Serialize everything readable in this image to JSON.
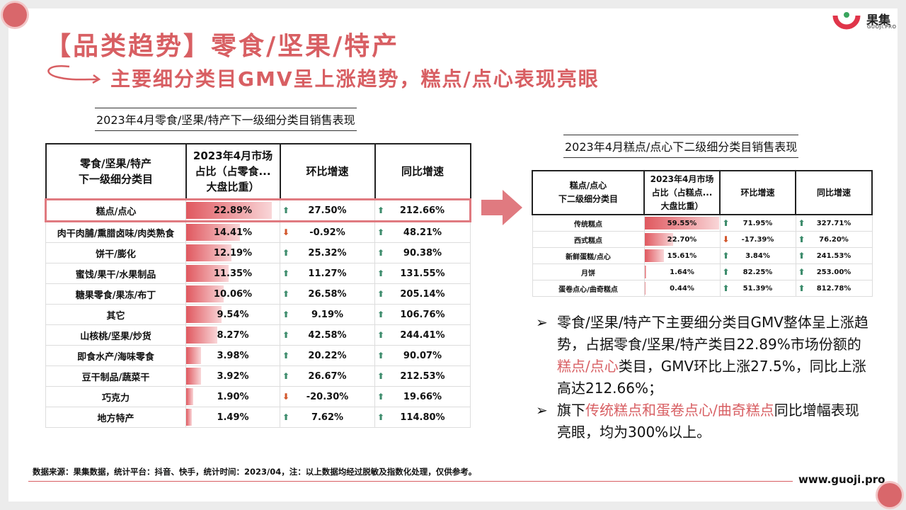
{
  "header": {
    "title": "【品类趋势】零食/坚果/特产",
    "subtitle": "主要细分类目GMV呈上涨趋势，糕点/点心表现亮眼"
  },
  "logo": {
    "name": "果集",
    "sub": "GUOJI.PRO"
  },
  "main_table": {
    "caption": "2023年4月零食/坚果/特产下一级细分类目销售表现",
    "headers": [
      "零食/坚果/特产\n下一级细分类目",
      "2023年4月市场\n占比（占零食...\n大盘比重）",
      "环比增速",
      "同比增速"
    ],
    "rows": [
      {
        "category": "糕点/点心",
        "share": "22.89%",
        "share_value": 22.89,
        "mom": "27.50%",
        "mom_dir": "up",
        "yoy": "212.66%",
        "yoy_dir": "up"
      },
      {
        "category": "肉干肉脯/熏腊卤味/肉类熟食",
        "share": "14.41%",
        "share_value": 14.41,
        "mom": "-0.92%",
        "mom_dir": "down",
        "yoy": "48.21%",
        "yoy_dir": "up"
      },
      {
        "category": "饼干/膨化",
        "share": "12.19%",
        "share_value": 12.19,
        "mom": "25.32%",
        "mom_dir": "up",
        "yoy": "90.38%",
        "yoy_dir": "up"
      },
      {
        "category": "蜜饯/果干/水果制品",
        "share": "11.35%",
        "share_value": 11.35,
        "mom": "11.27%",
        "mom_dir": "up",
        "yoy": "131.55%",
        "yoy_dir": "up"
      },
      {
        "category": "糖果零食/果冻/布丁",
        "share": "10.06%",
        "share_value": 10.06,
        "mom": "26.58%",
        "mom_dir": "up",
        "yoy": "205.14%",
        "yoy_dir": "up"
      },
      {
        "category": "其它",
        "share": "9.54%",
        "share_value": 9.54,
        "mom": "9.19%",
        "mom_dir": "up",
        "yoy": "106.76%",
        "yoy_dir": "up"
      },
      {
        "category": "山核桃/坚果/炒货",
        "share": "8.27%",
        "share_value": 8.27,
        "mom": "42.58%",
        "mom_dir": "up",
        "yoy": "244.41%",
        "yoy_dir": "up"
      },
      {
        "category": "即食水产/海味零食",
        "share": "3.98%",
        "share_value": 3.98,
        "mom": "20.22%",
        "mom_dir": "up",
        "yoy": "90.07%",
        "yoy_dir": "up"
      },
      {
        "category": "豆干制品/蔬菜干",
        "share": "3.92%",
        "share_value": 3.92,
        "mom": "26.67%",
        "mom_dir": "up",
        "yoy": "212.53%",
        "yoy_dir": "up"
      },
      {
        "category": "巧克力",
        "share": "1.90%",
        "share_value": 1.9,
        "mom": "-20.30%",
        "mom_dir": "down",
        "yoy": "19.66%",
        "yoy_dir": "up"
      },
      {
        "category": "地方特产",
        "share": "1.49%",
        "share_value": 1.49,
        "mom": "7.62%",
        "mom_dir": "up",
        "yoy": "114.80%",
        "yoy_dir": "up"
      }
    ]
  },
  "sub_table": {
    "caption": "2023年4月糕点/点心下二级细分类目销售表现",
    "headers": [
      "糕点/点心\n下二级细分类目",
      "2023年4月市场\n占比（占糕点...\n大盘比重）",
      "环比增速",
      "同比增速"
    ],
    "rows": [
      {
        "category": "传统糕点",
        "share": "59.55%",
        "share_value": 59.55,
        "mom": "71.95%",
        "mom_dir": "up",
        "yoy": "327.71%",
        "yoy_dir": "up"
      },
      {
        "category": "西式糕点",
        "share": "22.70%",
        "share_value": 22.7,
        "mom": "-17.39%",
        "mom_dir": "down",
        "yoy": "76.20%",
        "yoy_dir": "up"
      },
      {
        "category": "新鲜蛋糕/点心",
        "share": "15.61%",
        "share_value": 15.61,
        "mom": "3.84%",
        "mom_dir": "up",
        "yoy": "241.53%",
        "yoy_dir": "up"
      },
      {
        "category": "月饼",
        "share": "1.64%",
        "share_value": 1.64,
        "mom": "82.25%",
        "mom_dir": "up",
        "yoy": "253.00%",
        "yoy_dir": "up"
      },
      {
        "category": "蛋卷点心/曲奇糕点",
        "share": "0.44%",
        "share_value": 0.44,
        "mom": "51.39%",
        "mom_dir": "up",
        "yoy": "812.78%",
        "yoy_dir": "up"
      }
    ]
  },
  "bullets": [
    [
      {
        "text": "零食/坚果/特产下主要细分类目GMV整体呈上涨趋势，占据零食/坚果/特产类目22.89%市场份额的",
        "hl": false
      },
      {
        "text": "糕点/点心",
        "hl": true
      },
      {
        "text": "类目，GMV环比上涨27.5%，同比上涨高达212.66%；",
        "hl": false
      }
    ],
    [
      {
        "text": "旗下",
        "hl": false
      },
      {
        "text": "传统糕点和蛋卷点心/曲奇糕点",
        "hl": true
      },
      {
        "text": "同比增幅表现亮眼，均为300%以上。",
        "hl": false
      }
    ]
  ],
  "bullet_marker": "➢",
  "footer": {
    "source": "数据来源：果集数据，统计平台：抖音、快手，统计时间：2023/04，注：以上数据均经过脱敏及指数化处理，仅供参考。",
    "site": "www.guoji.pro"
  },
  "colors": {
    "accent": "#d85f63",
    "up": "#3d8c6c",
    "down": "#d2562b"
  }
}
